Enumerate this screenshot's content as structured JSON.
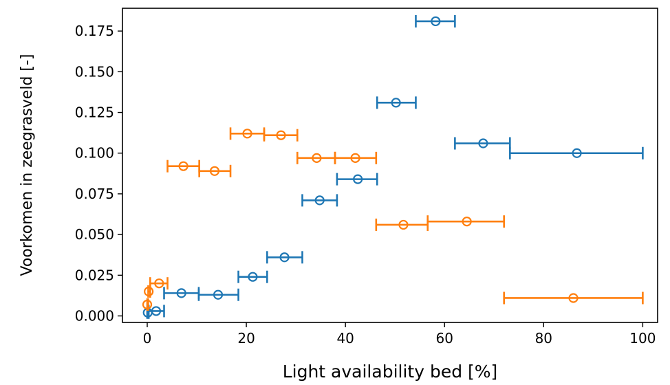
{
  "chart_data": {
    "type": "scatter",
    "xlabel": "Light availability bed [%]",
    "ylabel": "Voorkomen in zeegrasveld [-]",
    "xlim": [
      -5,
      103
    ],
    "ylim": [
      -0.004,
      0.189
    ],
    "x_ticks": [
      0,
      20,
      40,
      60,
      80,
      100
    ],
    "x_tick_labels": [
      "0",
      "20",
      "40",
      "60",
      "80",
      "100"
    ],
    "y_ticks": [
      0.0,
      0.025,
      0.05,
      0.075,
      0.1,
      0.125,
      0.15,
      0.175
    ],
    "y_tick_labels": [
      "0.000",
      "0.025",
      "0.050",
      "0.075",
      "0.100",
      "0.125",
      "0.150",
      "0.175"
    ],
    "grid": false,
    "marker": "open-circle",
    "series": [
      {
        "color": "#1f77b4",
        "points": [
          {
            "x": 0.1,
            "y": 0.002,
            "xerr": [
              0.0,
              0.3
            ]
          },
          {
            "x": 1.8,
            "y": 0.003,
            "xerr": [
              0.3,
              3.4
            ]
          },
          {
            "x": 6.9,
            "y": 0.014,
            "xerr": [
              3.4,
              10.4
            ]
          },
          {
            "x": 14.3,
            "y": 0.013,
            "xerr": [
              10.4,
              18.4
            ]
          },
          {
            "x": 21.3,
            "y": 0.024,
            "xerr": [
              18.4,
              24.2
            ]
          },
          {
            "x": 27.7,
            "y": 0.036,
            "xerr": [
              24.2,
              31.3
            ]
          },
          {
            "x": 34.8,
            "y": 0.071,
            "xerr": [
              31.3,
              38.3
            ]
          },
          {
            "x": 42.5,
            "y": 0.084,
            "xerr": [
              38.3,
              46.4
            ]
          },
          {
            "x": 50.2,
            "y": 0.131,
            "xerr": [
              46.4,
              54.2
            ]
          },
          {
            "x": 58.2,
            "y": 0.181,
            "xerr": [
              54.2,
              62.1
            ]
          },
          {
            "x": 67.8,
            "y": 0.106,
            "xerr": [
              62.1,
              73.2
            ]
          },
          {
            "x": 86.7,
            "y": 0.1,
            "xerr": [
              73.2,
              100.0
            ]
          }
        ]
      },
      {
        "color": "#ff7f0e",
        "points": [
          {
            "x": 0.0,
            "y": 0.007,
            "xerr": [
              0.0,
              0.2
            ]
          },
          {
            "x": 0.3,
            "y": 0.015,
            "xerr": [
              0.2,
              0.6
            ]
          },
          {
            "x": 2.4,
            "y": 0.02,
            "xerr": [
              0.6,
              4.1
            ]
          },
          {
            "x": 7.3,
            "y": 0.092,
            "xerr": [
              4.1,
              10.5
            ]
          },
          {
            "x": 13.6,
            "y": 0.089,
            "xerr": [
              10.5,
              16.8
            ]
          },
          {
            "x": 20.2,
            "y": 0.112,
            "xerr": [
              16.8,
              23.6
            ]
          },
          {
            "x": 27.0,
            "y": 0.111,
            "xerr": [
              23.6,
              30.3
            ]
          },
          {
            "x": 34.2,
            "y": 0.097,
            "xerr": [
              30.3,
              37.9
            ]
          },
          {
            "x": 42.0,
            "y": 0.097,
            "xerr": [
              37.9,
              46.2
            ]
          },
          {
            "x": 51.7,
            "y": 0.056,
            "xerr": [
              46.2,
              56.6
            ]
          },
          {
            "x": 64.5,
            "y": 0.058,
            "xerr": [
              56.6,
              72.0
            ]
          },
          {
            "x": 86.0,
            "y": 0.011,
            "xerr": [
              72.0,
              100.0
            ]
          }
        ]
      }
    ]
  }
}
